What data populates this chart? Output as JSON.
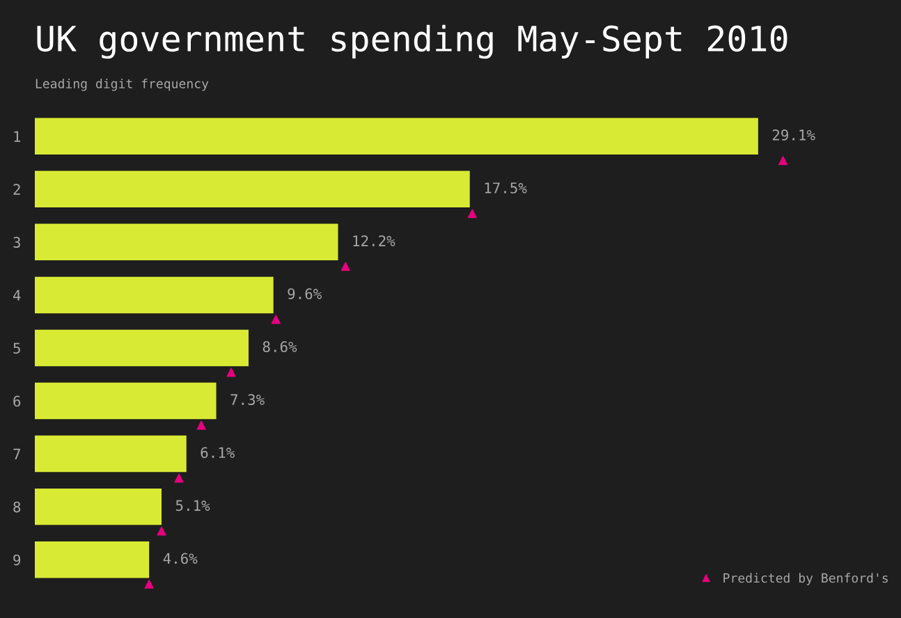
{
  "chart_data": {
    "type": "bar",
    "orientation": "horizontal",
    "title": "UK government spending May-Sept 2010",
    "subtitle": "Leading digit frequency",
    "categories": [
      "1",
      "2",
      "3",
      "4",
      "5",
      "6",
      "7",
      "8",
      "9"
    ],
    "series": [
      {
        "color": "#d9ea34",
        "values": [
          29.1,
          17.5,
          12.2,
          9.6,
          8.6,
          7.3,
          6.1,
          5.1,
          4.6
        ],
        "value_labels": [
          "29.1%",
          "17.5%",
          "12.2%",
          "9.6%",
          "8.6%",
          "7.3%",
          "6.1%",
          "5.1%",
          "4.6%"
        ]
      },
      {
        "type": "scatter",
        "name": "Predicted by Benford's",
        "color": "#e6007e",
        "marker": "triangle",
        "values": [
          30.1,
          17.6,
          12.5,
          9.7,
          7.9,
          6.7,
          5.8,
          5.1,
          4.6
        ]
      }
    ],
    "legend": "bottom right",
    "grid": false,
    "tick_labels": "y"
  }
}
